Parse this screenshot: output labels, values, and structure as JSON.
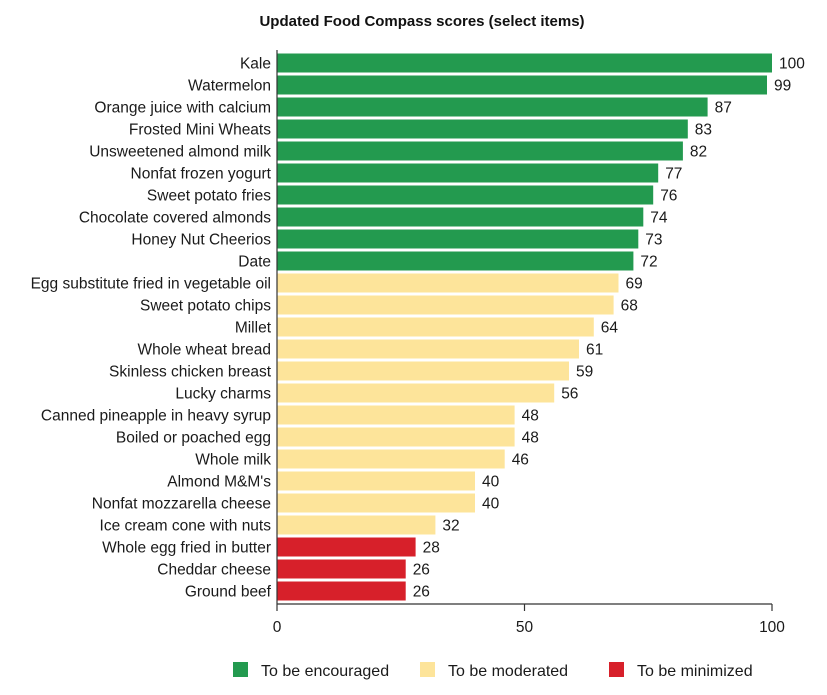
{
  "chart_data": {
    "type": "bar",
    "orientation": "horizontal",
    "title": "Updated Food Compass scores (select items)",
    "xlabel": "",
    "ylabel": "",
    "xlim": [
      0,
      100
    ],
    "xticks": [
      0,
      50,
      100
    ],
    "grid": false,
    "legend_position": "bottom",
    "categories": [
      "Kale",
      "Watermelon",
      "Orange juice with calcium",
      "Frosted Mini Wheats",
      "Unsweetened almond milk",
      "Nonfat frozen yogurt",
      "Sweet potato fries",
      "Chocolate covered almonds",
      "Honey Nut Cheerios",
      "Date",
      "Egg substitute fried in vegetable oil",
      "Sweet potato chips",
      "Millet",
      "Whole wheat bread",
      "Skinless chicken breast",
      "Lucky charms",
      "Canned pineapple in heavy syrup",
      "Boiled or poached egg",
      "Whole milk",
      "Almond M&M's",
      "Nonfat mozzarella cheese",
      "Ice cream cone with nuts",
      "Whole egg fried in butter",
      "Cheddar cheese",
      "Ground beef"
    ],
    "values": [
      100,
      99,
      87,
      83,
      82,
      77,
      76,
      74,
      73,
      72,
      69,
      68,
      64,
      61,
      59,
      56,
      48,
      48,
      46,
      40,
      40,
      32,
      28,
      26,
      26
    ],
    "groups": [
      0,
      0,
      0,
      0,
      0,
      0,
      0,
      0,
      0,
      0,
      1,
      1,
      1,
      1,
      1,
      1,
      1,
      1,
      1,
      1,
      1,
      1,
      2,
      2,
      2
    ],
    "legend": [
      {
        "name": "To be encouraged",
        "color": "#239a4f"
      },
      {
        "name": "To be moderated",
        "color": "#fde49a"
      },
      {
        "name": "To be minimized",
        "color": "#d7202a"
      }
    ]
  }
}
